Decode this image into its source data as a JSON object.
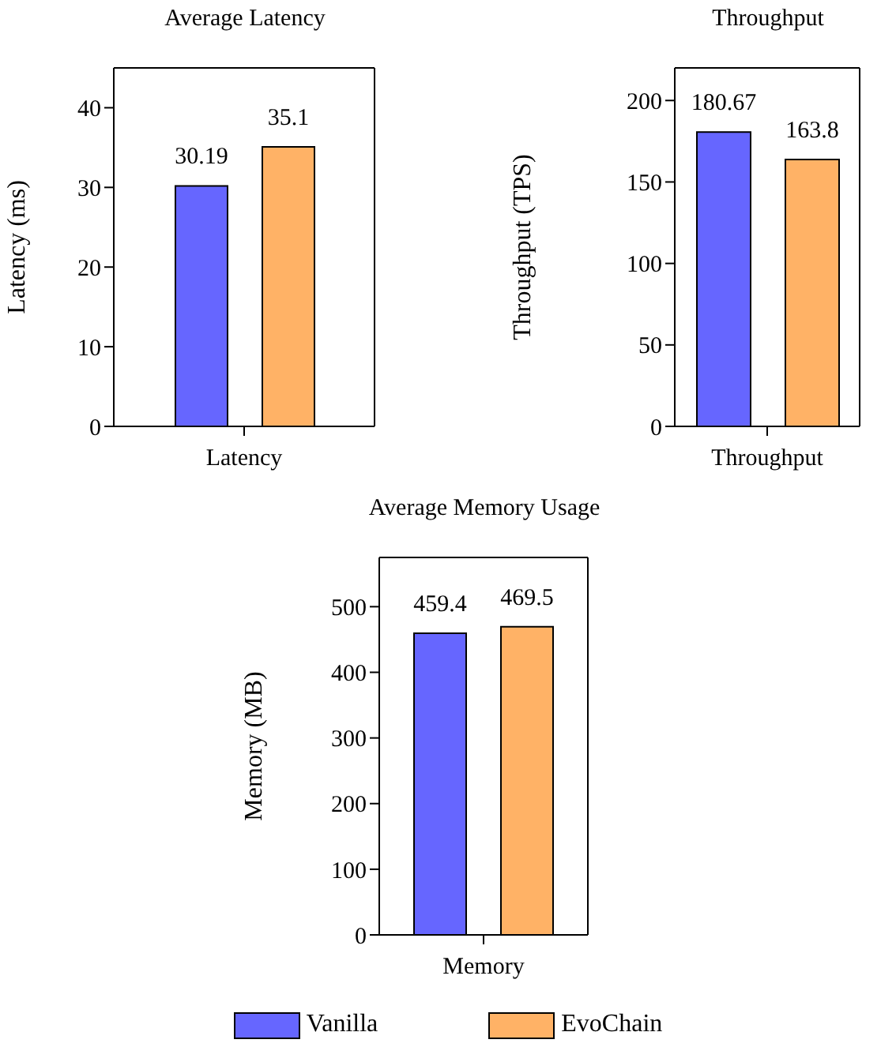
{
  "chart_data": [
    {
      "type": "bar",
      "title": "Average Latency",
      "ylabel": "Latency (ms)",
      "categories": [
        "Latency"
      ],
      "ylim": [
        0,
        45
      ],
      "yticks": [
        0,
        10,
        20,
        30,
        40
      ],
      "data_labels": true,
      "series": [
        {
          "color": "#6666ff",
          "values": [
            30.19
          ]
        },
        {
          "color": "#ffb266",
          "values": [
            35.1
          ]
        }
      ]
    },
    {
      "type": "bar",
      "title": "Throughput",
      "ylabel": "Throughput (TPS)",
      "categories": [
        "Throughput"
      ],
      "ylim": [
        0,
        220
      ],
      "yticks": [
        0,
        50,
        100,
        150,
        200
      ],
      "data_labels": true,
      "series": [
        {
          "color": "#6666ff",
          "values": [
            180.67
          ]
        },
        {
          "color": "#ffb266",
          "values": [
            163.8
          ]
        }
      ]
    },
    {
      "type": "bar",
      "title": "Average Memory Usage",
      "ylabel": "Memory (MB)",
      "categories": [
        "Memory"
      ],
      "ylim": [
        0,
        575
      ],
      "yticks": [
        0,
        100,
        200,
        300,
        400,
        500
      ],
      "data_labels": true,
      "legend": "bottom",
      "series": [
        {
          "name": "Vanilla",
          "color": "#6666ff",
          "values": [
            459.4
          ]
        },
        {
          "name": "EvoChain",
          "color": "#ffb266",
          "values": [
            469.5
          ]
        }
      ]
    }
  ]
}
